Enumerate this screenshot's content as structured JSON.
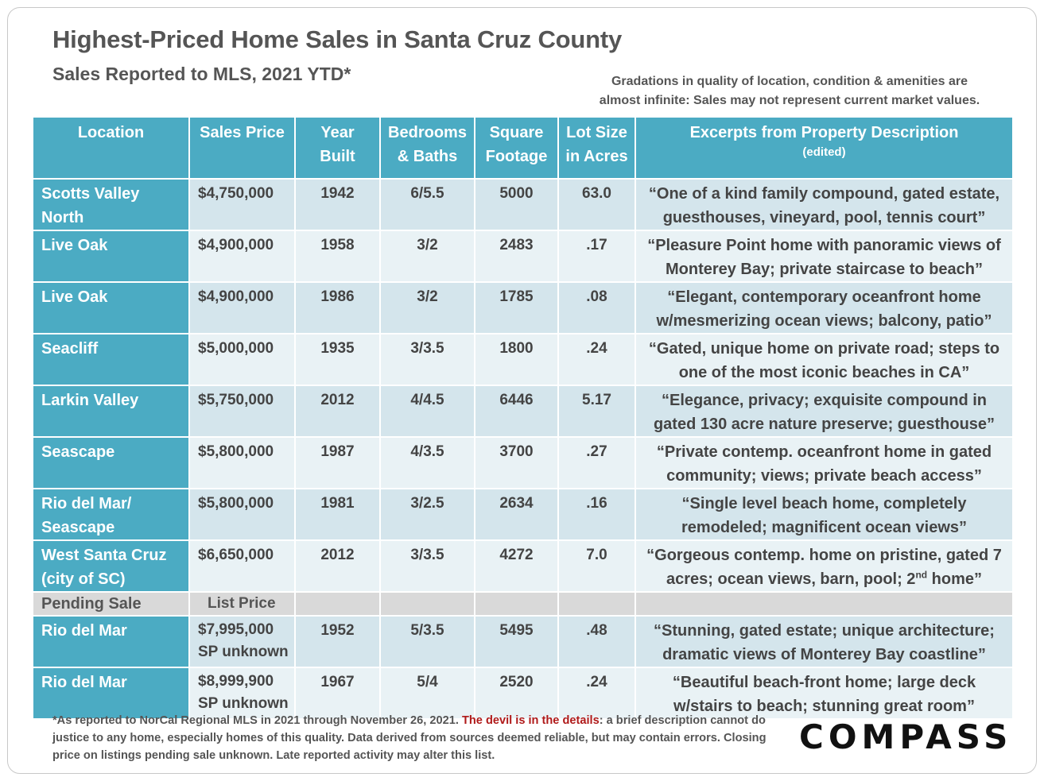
{
  "title": "Highest-Priced Home Sales in Santa Cruz County",
  "subtitle": "Sales Reported to MLS, 2021 YTD*",
  "note": {
    "line1": "Gradations in quality of location, condition & amenities are",
    "line2": "almost infinite: Sales may not represent current market values."
  },
  "headers": {
    "location": "Location",
    "price": "Sales Price",
    "year_l1": "Year",
    "year_l2": "Built",
    "beds_l1": "Bedrooms",
    "beds_l2": "& Baths",
    "sqft_l1": "Square",
    "sqft_l2": "Footage",
    "lot_l1": "Lot Size",
    "lot_l2": "in Acres",
    "desc_l1": "Excerpts from Property Description",
    "desc_l2": "(edited)"
  },
  "rows": [
    {
      "loc1": "Scotts Valley",
      "loc2": "North",
      "price": "$4,750,000",
      "year": "1942",
      "beds": "6/5.5",
      "sqft": "5000",
      "lot": "63.0",
      "desc1": "“One of a kind family compound, gated estate,",
      "desc2": "guesthouses, vineyard, pool, tennis court”"
    },
    {
      "loc1": "Live Oak",
      "loc2": "",
      "price": "$4,900,000",
      "year": "1958",
      "beds": "3/2",
      "sqft": "2483",
      "lot": ".17",
      "desc1": "“Pleasure Point home with panoramic views of",
      "desc2": "Monterey Bay; private staircase to beach”"
    },
    {
      "loc1": "Live Oak",
      "loc2": "",
      "price": "$4,900,000",
      "year": "1986",
      "beds": "3/2",
      "sqft": "1785",
      "lot": ".08",
      "desc1": "“Elegant, contemporary oceanfront home",
      "desc2": "w/mesmerizing ocean views; balcony, patio”"
    },
    {
      "loc1": "Seacliff",
      "loc2": "",
      "price": "$5,000,000",
      "year": "1935",
      "beds": "3/3.5",
      "sqft": "1800",
      "lot": ".24",
      "desc1": "“Gated, unique home on private road; steps to",
      "desc2": "one of the most iconic beaches in CA”"
    },
    {
      "loc1": "Larkin Valley",
      "loc2": "",
      "price": "$5,750,000",
      "year": "2012",
      "beds": "4/4.5",
      "sqft": "6446",
      "lot": "5.17",
      "desc1": "“Elegance, privacy; exquisite compound in",
      "desc2": "gated 130 acre nature preserve; guesthouse”"
    },
    {
      "loc1": "Seascape",
      "loc2": "",
      "price": "$5,800,000",
      "year": "1987",
      "beds": "4/3.5",
      "sqft": "3700",
      "lot": ".27",
      "desc1": "“Private contemp. oceanfront home in gated",
      "desc2": "community; views; private beach access”"
    },
    {
      "loc1": "Rio del Mar/",
      "loc2": "Seascape",
      "price": "$5,800,000",
      "year": "1981",
      "beds": "3/2.5",
      "sqft": "2634",
      "lot": ".16",
      "desc1": "“Single level beach home, completely",
      "desc2": "remodeled; magnificent ocean views”"
    }
  ],
  "row8": {
    "loc1": "West Santa Cruz",
    "loc2": "(city of SC)",
    "price": "$6,650,000",
    "year": "2012",
    "beds": "3/3.5",
    "sqft": "4272",
    "lot": "7.0",
    "desc1": "“Gorgeous contemp. home on pristine, gated 7",
    "desc2_a": "acres; ocean views, barn, pool; 2",
    "desc2_sup": "nd",
    "desc2_b": " home”"
  },
  "pending": {
    "label": "Pending Sale",
    "price_label": "List Price"
  },
  "pending_rows": [
    {
      "loc1": "Rio del Mar",
      "price": "$7,995,000",
      "price2": "SP unknown",
      "year": "1952",
      "beds": "5/3.5",
      "sqft": "5495",
      "lot": ".48",
      "desc1": "“Stunning, gated estate; unique architecture;",
      "desc2": "dramatic views of Monterey Bay coastline”"
    },
    {
      "loc1": "Rio del Mar",
      "price": "$8,999,900",
      "price2": "SP unknown",
      "year": "1967",
      "beds": "5/4",
      "sqft": "2520",
      "lot": ".24",
      "desc1": "“Beautiful beach-front home; large deck",
      "desc2": "w/stairs to beach; stunning great room”"
    }
  ],
  "footer": {
    "part1": "*As reported to NorCal Regional MLS in 2021 through November 26, 2021. ",
    "red": "The devil is in the details",
    "part2": ": a brief description cannot do justice to any home, especially homes of this quality. Data derived from sources deemed reliable, but may contain errors. Closing price on listings pending sale unknown. Late reported activity may alter this list."
  },
  "logo": "COMPASS",
  "colors": {
    "header_teal": "#4babc3",
    "row_dark": "#d4e5ec",
    "row_light": "#e9f2f5",
    "pending_gray": "#d9d9d9",
    "accent_red": "#b01a1a"
  }
}
